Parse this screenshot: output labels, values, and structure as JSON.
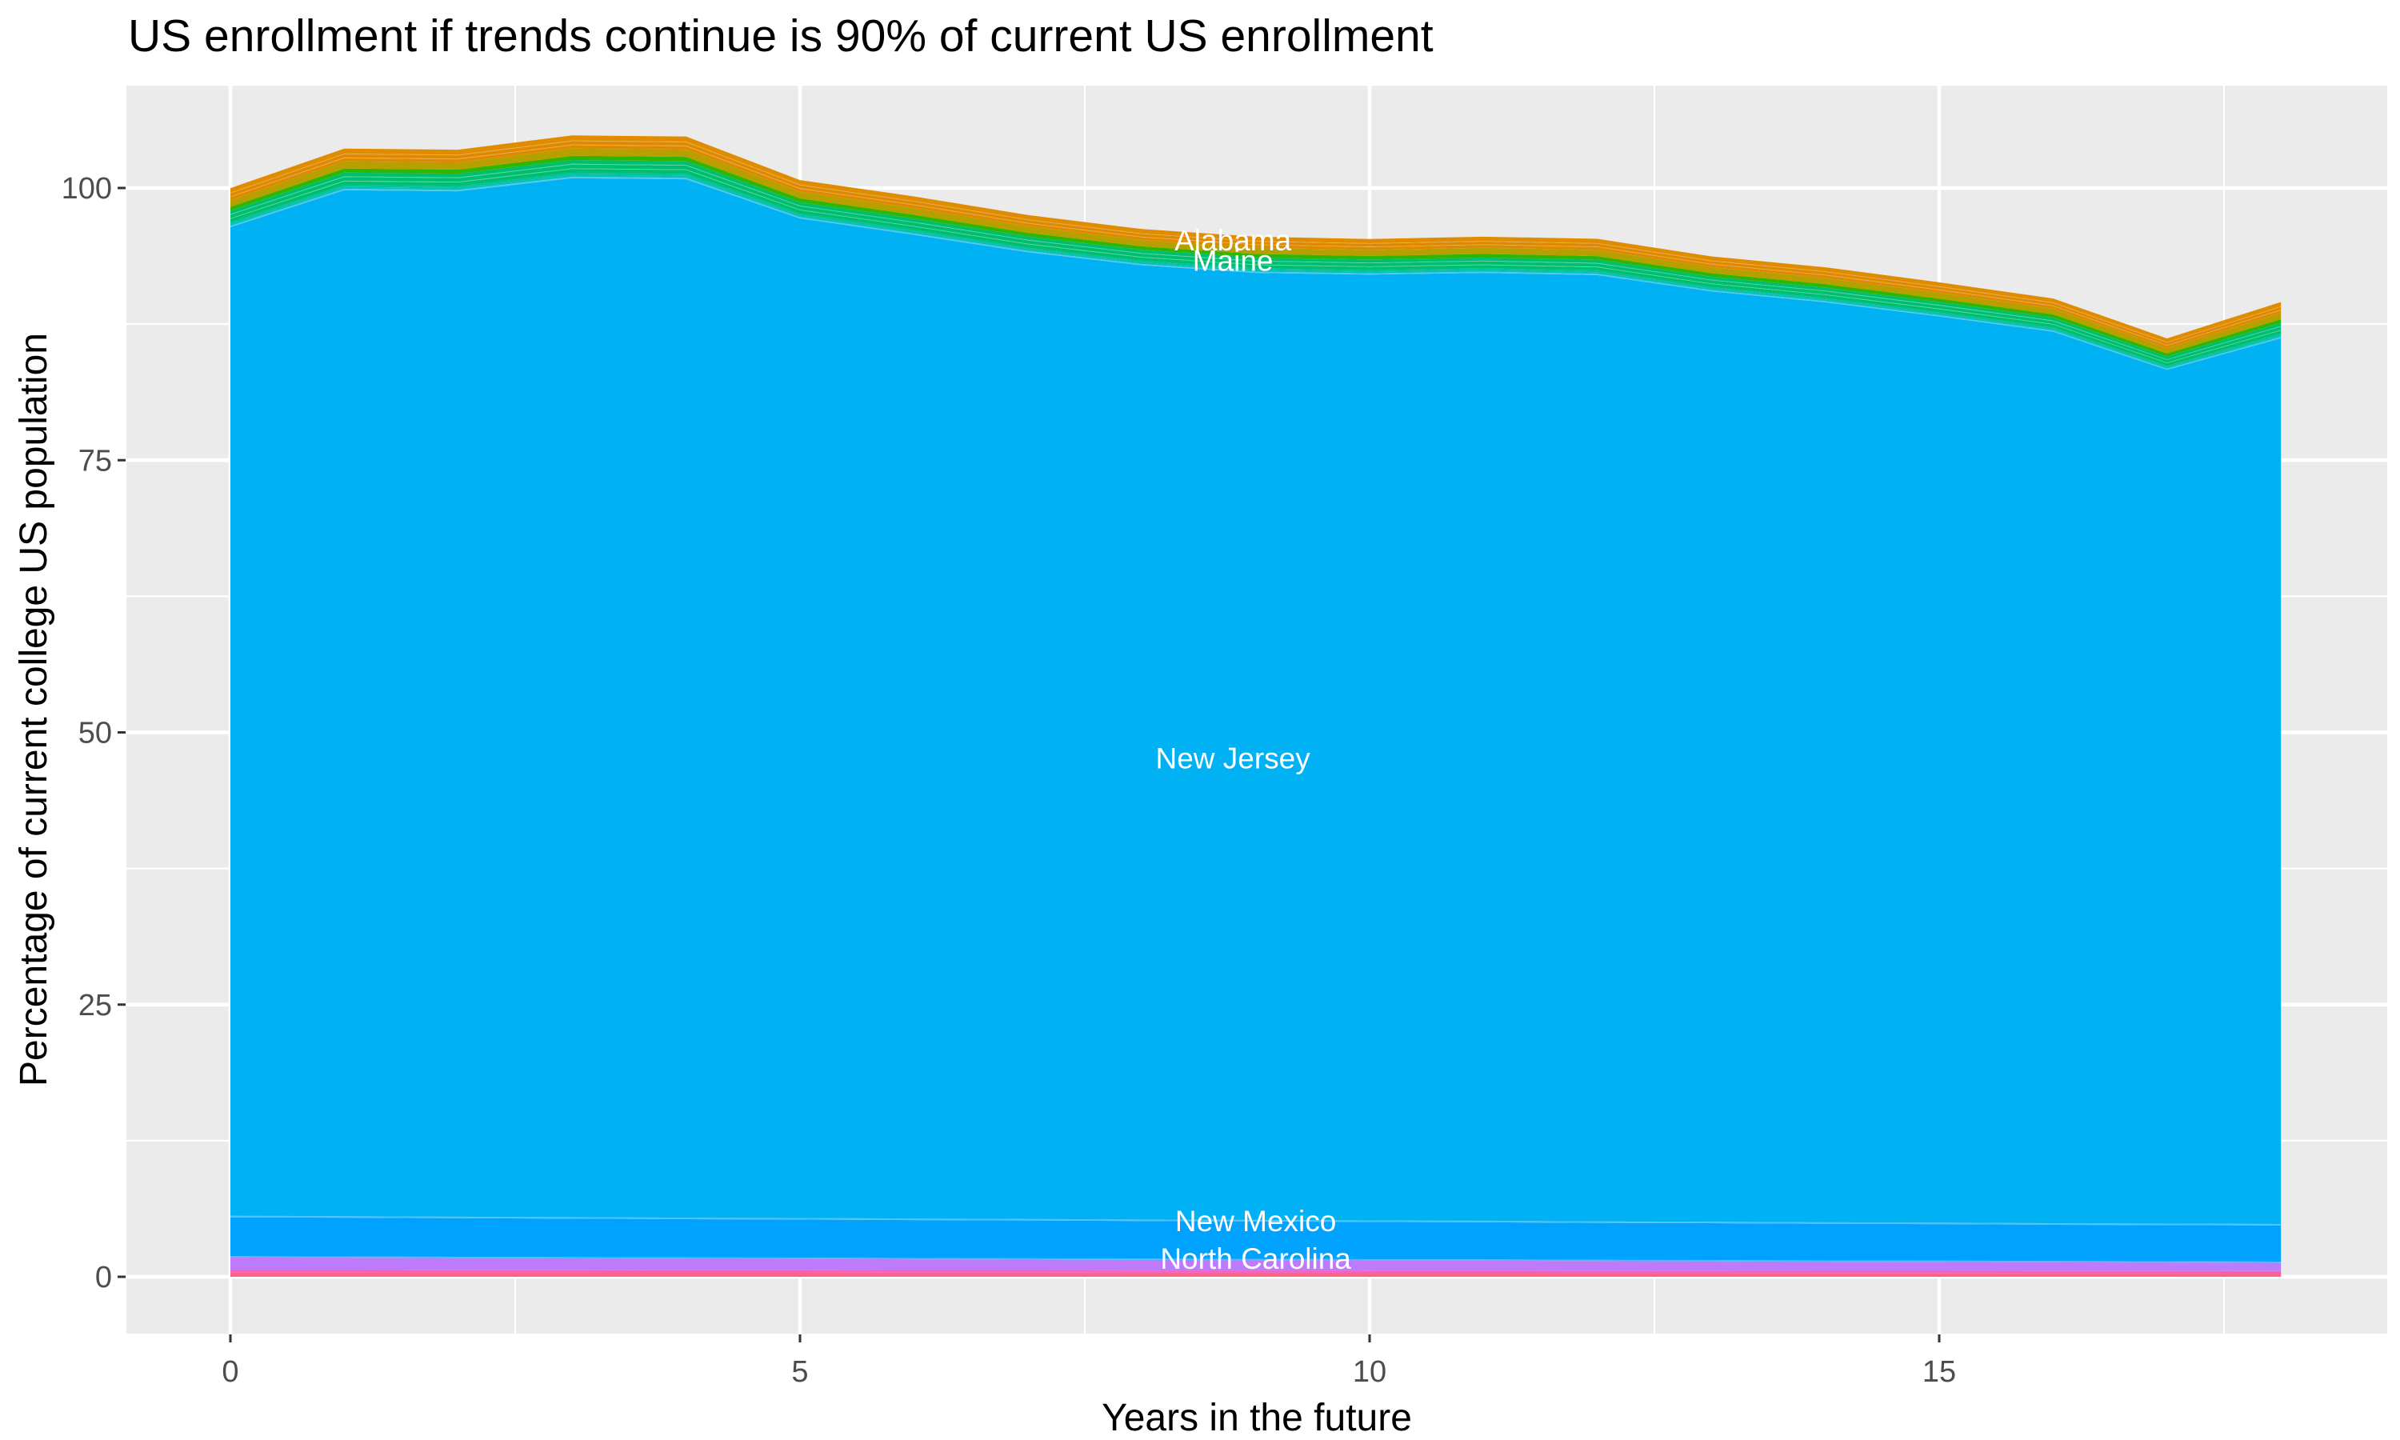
{
  "chart": {
    "title": "US enrollment if trends continue is 90% of current US enrollment",
    "x_axis": {
      "label": "Years in the future",
      "tick_labels": [
        "0",
        "5",
        "10",
        "15"
      ],
      "tick_values": [
        0,
        5,
        10,
        15
      ],
      "minor_tick_values": [
        2.5,
        7.5,
        12.5,
        17.5
      ],
      "range": [
        -0.9,
        18.9
      ]
    },
    "y_axis": {
      "label": "Percentage of current college US population",
      "tick_labels": [
        "0",
        "25",
        "50",
        "75",
        "100"
      ],
      "tick_values": [
        0,
        25,
        50,
        75,
        100
      ],
      "minor_tick_values": [
        12.5,
        37.5,
        62.5,
        87.5
      ],
      "range": [
        -5.5,
        109.8
      ]
    },
    "colors": {
      "panel_background": "#EBEBEB",
      "grid_major": "#FFFFFF",
      "grid_minor": "#FFFFFF",
      "tick_mark": "#333333",
      "tick_label": "#4D4D4D",
      "title_text": "#000000",
      "band_label_text": "#FFFFFF"
    }
  },
  "chart_data": {
    "type": "area",
    "stacked": true,
    "title": "US enrollment if trends continue is 90% of current US enrollment",
    "xlabel": "Years in the future",
    "ylabel": "Percentage of current college US population",
    "x": [
      0,
      1,
      2,
      3,
      4,
      5,
      6,
      7,
      8,
      9,
      10,
      11,
      12,
      13,
      14,
      15,
      16,
      17,
      18
    ],
    "stack_totals": [
      100,
      103.6,
      103.5,
      104.8,
      104.7,
      100.7,
      99.2,
      97.5,
      96.2,
      95.5,
      95.3,
      95.5,
      95.3,
      93.7,
      92.7,
      91.3,
      89.8,
      86.2,
      89.5
    ],
    "series": [
      {
        "name": "Alabama",
        "approx_values": [
          1.11,
          1.18,
          1.18,
          1.21,
          1.21,
          1.08,
          1.08,
          1.05,
          1.02,
          1.02,
          1.0,
          1.02,
          1.02,
          0.99,
          0.99,
          0.96,
          0.93,
          0.9,
          1.02
        ]
      },
      {
        "name": "Maine",
        "approx_values": [
          1.06,
          1.14,
          1.14,
          1.17,
          1.17,
          1.06,
          1.06,
          1.02,
          1.0,
          1.0,
          0.97,
          1.0,
          1.0,
          0.97,
          0.97,
          0.94,
          0.91,
          0.86,
          1.0
        ]
      },
      {
        "name": "New Jersey",
        "approx_values": [
          90.8,
          94.23,
          94.18,
          95.42,
          95.37,
          91.8,
          90.35,
          88.79,
          87.64,
          86.97,
          86.87,
          87.05,
          86.91,
          85.44,
          84.49,
          83.22,
          81.88,
          78.41,
          81.35
        ]
      },
      {
        "name": "New Mexico",
        "approx_values": [
          3.57,
          3.56,
          3.54,
          3.53,
          3.51,
          3.5,
          3.48,
          3.47,
          3.45,
          3.44,
          3.42,
          3.41,
          3.39,
          3.38,
          3.36,
          3.35,
          3.33,
          3.32,
          3.31
        ]
      },
      {
        "name": "North Carolina",
        "approx_values": [
          1.15,
          1.13,
          1.11,
          1.08,
          1.06,
          1.04,
          1.02,
          0.99,
          0.97,
          0.95,
          0.93,
          0.91,
          0.88,
          0.86,
          0.84,
          0.82,
          0.79,
          0.77,
          0.75
        ]
      }
    ],
    "note": "Stack also contains many thin unlabeled state bands; only five bands carry text labels.",
    "labels": [
      {
        "text": "Alabama",
        "x": 8.8,
        "v": 95.0
      },
      {
        "text": "Maine",
        "x": 8.8,
        "v": 93.1
      },
      {
        "text": "New Jersey",
        "x": 8.8,
        "v": 47.4
      },
      {
        "text": "New Mexico",
        "x": 9.0,
        "v": 4.9
      },
      {
        "text": "North Carolina",
        "x": 9.0,
        "v": 1.45
      }
    ],
    "render_layers": [
      {
        "key": "rose",
        "color": "#FB6286",
        "values": [
          0.42,
          0.42,
          0.41,
          0.41,
          0.4,
          0.4,
          0.39,
          0.39,
          0.38,
          0.38,
          0.37,
          0.37,
          0.36,
          0.36,
          0.35,
          0.35,
          0.34,
          0.34,
          0.33
        ]
      },
      {
        "key": "magenta",
        "color": "#F55EC2",
        "values": [
          0.2,
          0.2,
          0.2,
          0.2,
          0.2,
          0.2,
          0.2,
          0.2,
          0.2,
          0.2,
          0.2,
          0.2,
          0.2,
          0.2,
          0.2,
          0.2,
          0.2,
          0.2,
          0.2
        ]
      },
      {
        "key": "north-carolina",
        "color": "#BD7BFA",
        "values": [
          1.15,
          1.13,
          1.11,
          1.08,
          1.06,
          1.04,
          1.02,
          0.99,
          0.97,
          0.95,
          0.93,
          0.91,
          0.88,
          0.86,
          0.84,
          0.82,
          0.79,
          0.77,
          0.75
        ]
      },
      {
        "key": "thin-blue",
        "color": "#58B5FF",
        "values": [
          0.12,
          0.12,
          0.12,
          0.12,
          0.12,
          0.12,
          0.12,
          0.12,
          0.12,
          0.12,
          0.12,
          0.12,
          0.12,
          0.12,
          0.12,
          0.12,
          0.12,
          0.12,
          0.12
        ]
      },
      {
        "key": "new-mexico",
        "color": "#00A2FF",
        "values": [
          3.57,
          3.56,
          3.54,
          3.53,
          3.51,
          3.5,
          3.48,
          3.47,
          3.45,
          3.44,
          3.42,
          3.41,
          3.39,
          3.38,
          3.36,
          3.35,
          3.33,
          3.32,
          3.31
        ]
      },
      {
        "key": "sliver-blue",
        "color": "#4FC2F8",
        "values": [
          0.14,
          0.14,
          0.14,
          0.14,
          0.14,
          0.14,
          0.14,
          0.14,
          0.14,
          0.14,
          0.14,
          0.14,
          0.14,
          0.14,
          0.14,
          0.14,
          0.14,
          0.14,
          0.14
        ]
      },
      {
        "key": "new-jersey",
        "color": "#00B2F3",
        "values": [
          90.8,
          94.23,
          94.18,
          95.42,
          95.37,
          91.8,
          90.35,
          88.79,
          87.64,
          86.97,
          86.87,
          87.05,
          86.91,
          85.44,
          84.49,
          83.22,
          81.88,
          78.41,
          81.35
        ]
      },
      {
        "key": "teal-1",
        "color": "#52C8E8",
        "values": [
          0.13,
          0.13,
          0.13,
          0.14,
          0.14,
          0.12,
          0.12,
          0.12,
          0.12,
          0.12,
          0.11,
          0.12,
          0.12,
          0.11,
          0.11,
          0.11,
          0.11,
          0.1,
          0.12
        ]
      },
      {
        "key": "teal-2",
        "color": "#00C2B8",
        "values": [
          0.16,
          0.17,
          0.17,
          0.18,
          0.18,
          0.16,
          0.16,
          0.15,
          0.15,
          0.15,
          0.15,
          0.15,
          0.15,
          0.14,
          0.14,
          0.14,
          0.14,
          0.13,
          0.15
        ]
      },
      {
        "key": "teal-3",
        "color": "#00C1A0",
        "values": [
          0.16,
          0.17,
          0.17,
          0.18,
          0.18,
          0.16,
          0.16,
          0.15,
          0.15,
          0.15,
          0.15,
          0.15,
          0.15,
          0.14,
          0.14,
          0.14,
          0.14,
          0.13,
          0.15
        ]
      },
      {
        "key": "emerald-1",
        "color": "#00BE70",
        "values": [
          0.32,
          0.34,
          0.34,
          0.35,
          0.35,
          0.32,
          0.32,
          0.31,
          0.3,
          0.3,
          0.29,
          0.3,
          0.3,
          0.29,
          0.29,
          0.28,
          0.27,
          0.26,
          0.3
        ]
      },
      {
        "key": "stripe-1",
        "color": "#4ED9A0",
        "values": [
          0.05,
          0.06,
          0.06,
          0.06,
          0.06,
          0.05,
          0.05,
          0.05,
          0.05,
          0.05,
          0.05,
          0.05,
          0.05,
          0.05,
          0.05,
          0.05,
          0.05,
          0.04,
          0.05
        ]
      },
      {
        "key": "maine",
        "color": "#00BE70",
        "values": [
          0.32,
          0.34,
          0.34,
          0.35,
          0.35,
          0.32,
          0.32,
          0.31,
          0.3,
          0.3,
          0.29,
          0.3,
          0.3,
          0.29,
          0.29,
          0.28,
          0.27,
          0.26,
          0.3
        ]
      },
      {
        "key": "stripe-2",
        "color": "#4ED9A0",
        "values": [
          0.05,
          0.06,
          0.06,
          0.06,
          0.06,
          0.05,
          0.05,
          0.05,
          0.05,
          0.05,
          0.05,
          0.05,
          0.05,
          0.05,
          0.05,
          0.05,
          0.05,
          0.04,
          0.05
        ]
      },
      {
        "key": "emerald-3",
        "color": "#00BE70",
        "values": [
          0.32,
          0.34,
          0.34,
          0.35,
          0.35,
          0.32,
          0.32,
          0.31,
          0.3,
          0.3,
          0.29,
          0.3,
          0.3,
          0.29,
          0.29,
          0.28,
          0.27,
          0.26,
          0.3
        ]
      },
      {
        "key": "green",
        "color": "#2FB600",
        "values": [
          0.36,
          0.38,
          0.38,
          0.39,
          0.39,
          0.35,
          0.35,
          0.34,
          0.33,
          0.33,
          0.33,
          0.33,
          0.33,
          0.32,
          0.32,
          0.31,
          0.3,
          0.29,
          0.33
        ]
      },
      {
        "key": "olive",
        "color": "#B79F00",
        "values": [
          0.61,
          0.65,
          0.65,
          0.66,
          0.66,
          0.6,
          0.6,
          0.58,
          0.56,
          0.56,
          0.55,
          0.56,
          0.56,
          0.54,
          0.54,
          0.53,
          0.51,
          0.49,
          0.56
        ]
      },
      {
        "key": "orange-1",
        "color": "#DE8A00",
        "values": [
          0.29,
          0.3,
          0.3,
          0.31,
          0.31,
          0.28,
          0.28,
          0.27,
          0.26,
          0.26,
          0.26,
          0.26,
          0.26,
          0.26,
          0.26,
          0.25,
          0.24,
          0.23,
          0.26
        ]
      },
      {
        "key": "stripe-3",
        "color": "#F0A63C",
        "values": [
          0.05,
          0.06,
          0.06,
          0.06,
          0.06,
          0.05,
          0.05,
          0.05,
          0.05,
          0.05,
          0.05,
          0.05,
          0.05,
          0.05,
          0.05,
          0.05,
          0.05,
          0.04,
          0.05
        ]
      },
      {
        "key": "alabama",
        "color": "#DE8A00",
        "values": [
          0.29,
          0.3,
          0.3,
          0.31,
          0.31,
          0.28,
          0.28,
          0.27,
          0.26,
          0.26,
          0.26,
          0.26,
          0.26,
          0.26,
          0.26,
          0.25,
          0.24,
          0.23,
          0.26
        ]
      },
      {
        "key": "stripe-4",
        "color": "#F0A63C",
        "values": [
          0.05,
          0.06,
          0.06,
          0.06,
          0.06,
          0.05,
          0.05,
          0.05,
          0.05,
          0.05,
          0.05,
          0.05,
          0.05,
          0.05,
          0.05,
          0.05,
          0.05,
          0.04,
          0.05
        ]
      },
      {
        "key": "orange-3",
        "color": "#E08C00",
        "values": [
          0.43,
          0.46,
          0.46,
          0.47,
          0.47,
          0.42,
          0.42,
          0.41,
          0.4,
          0.4,
          0.39,
          0.4,
          0.4,
          0.38,
          0.38,
          0.37,
          0.36,
          0.35,
          0.4
        ]
      }
    ]
  }
}
